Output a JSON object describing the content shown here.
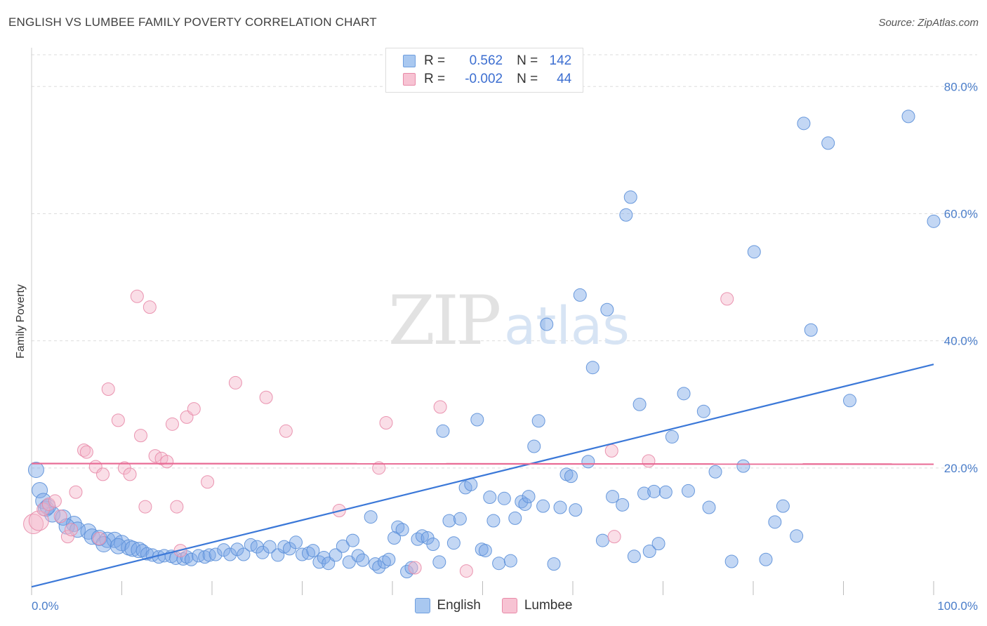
{
  "title": "ENGLISH VS LUMBEE FAMILY POVERTY CORRELATION CHART",
  "source": "Source: ZipAtlas.com",
  "watermark": {
    "zip": "ZIP",
    "atlas": "atlas"
  },
  "legend": {
    "rows": [
      {
        "r_label": "R =",
        "r_value": "0.562",
        "n_label": "N =",
        "n_value": "142",
        "color": "#a9c8f0",
        "border": "#6f9fdf"
      },
      {
        "r_label": "R =",
        "r_value": "-0.002",
        "n_label": "N =",
        "n_value": "44",
        "color": "#f7c3d3",
        "border": "#e88aa8"
      }
    ]
  },
  "bottom_legend": [
    {
      "label": "English",
      "color": "#a9c8f0",
      "border": "#6f9fdf"
    },
    {
      "label": "Lumbee",
      "color": "#f7c3d3",
      "border": "#e88aa8"
    }
  ],
  "chart_data": {
    "type": "scatter",
    "title": "ENGLISH VS LUMBEE FAMILY POVERTY CORRELATION CHART",
    "xlabel": "",
    "ylabel": "Family Poverty",
    "xlim": [
      0,
      100
    ],
    "ylim": [
      0,
      85
    ],
    "x_tick_labels": [
      "0.0%",
      "100.0%"
    ],
    "y_ticks": [
      20,
      40,
      60,
      80
    ],
    "y_tick_labels": [
      "20.0%",
      "40.0%",
      "60.0%",
      "80.0%"
    ],
    "grid": true,
    "series": [
      {
        "name": "English",
        "color": "#7aa6e6",
        "stroke": "#5b8fd8",
        "trend": {
          "x": [
            0,
            100
          ],
          "y": [
            1.3,
            36.3
          ],
          "color": "#3b78d8"
        },
        "points": [
          [
            0.5,
            19.7
          ],
          [
            0.9,
            16.5
          ],
          [
            1.3,
            14.8
          ],
          [
            1.6,
            13.6
          ],
          [
            2.3,
            12.7
          ],
          [
            3.5,
            12.2
          ],
          [
            4.7,
            11.2
          ],
          [
            3.9,
            10.8
          ],
          [
            5.1,
            10.3
          ],
          [
            6.3,
            10.0
          ],
          [
            6.7,
            9.2
          ],
          [
            7.5,
            9.0
          ],
          [
            8.4,
            8.7
          ],
          [
            9.2,
            8.7
          ],
          [
            8.0,
            8.0
          ],
          [
            10.0,
            8.2
          ],
          [
            9.6,
            7.7
          ],
          [
            10.8,
            7.5
          ],
          [
            11.2,
            7.3
          ],
          [
            11.9,
            7.1
          ],
          [
            12.3,
            7.0
          ],
          [
            12.8,
            6.5
          ],
          [
            13.4,
            6.3
          ],
          [
            14.1,
            6.0
          ],
          [
            14.7,
            6.2
          ],
          [
            15.5,
            6.1
          ],
          [
            16.0,
            5.8
          ],
          [
            16.8,
            5.7
          ],
          [
            17.2,
            6.0
          ],
          [
            17.7,
            5.6
          ],
          [
            18.5,
            6.2
          ],
          [
            19.2,
            6.0
          ],
          [
            19.7,
            6.3
          ],
          [
            20.4,
            6.4
          ],
          [
            21.3,
            7.1
          ],
          [
            22.0,
            6.4
          ],
          [
            22.8,
            7.2
          ],
          [
            23.5,
            6.4
          ],
          [
            24.3,
            7.9
          ],
          [
            25.0,
            7.6
          ],
          [
            25.6,
            6.7
          ],
          [
            26.4,
            7.6
          ],
          [
            27.3,
            6.3
          ],
          [
            28.0,
            7.6
          ],
          [
            28.6,
            7.3
          ],
          [
            29.3,
            8.3
          ],
          [
            30.0,
            6.4
          ],
          [
            30.7,
            6.6
          ],
          [
            31.2,
            7.0
          ],
          [
            31.9,
            5.2
          ],
          [
            32.4,
            5.9
          ],
          [
            32.9,
            5.0
          ],
          [
            33.7,
            6.3
          ],
          [
            34.5,
            7.7
          ],
          [
            35.2,
            5.2
          ],
          [
            35.6,
            8.6
          ],
          [
            36.2,
            6.2
          ],
          [
            36.7,
            5.5
          ],
          [
            37.6,
            12.3
          ],
          [
            38.1,
            4.9
          ],
          [
            38.5,
            4.4
          ],
          [
            39.1,
            5.2
          ],
          [
            39.6,
            5.6
          ],
          [
            40.2,
            9.0
          ],
          [
            40.6,
            10.7
          ],
          [
            41.1,
            10.3
          ],
          [
            41.6,
            3.7
          ],
          [
            42.1,
            4.3
          ],
          [
            42.8,
            8.8
          ],
          [
            43.3,
            9.3
          ],
          [
            43.9,
            9.0
          ],
          [
            44.5,
            8.0
          ],
          [
            45.2,
            5.2
          ],
          [
            45.6,
            25.8
          ],
          [
            46.3,
            11.7
          ],
          [
            46.8,
            8.2
          ],
          [
            47.5,
            12.0
          ],
          [
            48.1,
            16.9
          ],
          [
            48.7,
            17.4
          ],
          [
            49.4,
            27.6
          ],
          [
            49.9,
            7.2
          ],
          [
            50.3,
            7.0
          ],
          [
            50.8,
            15.4
          ],
          [
            51.2,
            11.7
          ],
          [
            51.8,
            5.0
          ],
          [
            52.4,
            15.2
          ],
          [
            53.1,
            5.4
          ],
          [
            53.6,
            12.1
          ],
          [
            54.3,
            14.7
          ],
          [
            54.7,
            14.3
          ],
          [
            55.1,
            15.5
          ],
          [
            55.7,
            23.4
          ],
          [
            56.2,
            27.4
          ],
          [
            56.7,
            14.0
          ],
          [
            57.1,
            42.6
          ],
          [
            57.9,
            4.9
          ],
          [
            58.6,
            13.8
          ],
          [
            59.3,
            19.0
          ],
          [
            59.8,
            18.7
          ],
          [
            60.3,
            13.4
          ],
          [
            60.8,
            47.2
          ],
          [
            61.7,
            21.0
          ],
          [
            62.2,
            35.8
          ],
          [
            63.3,
            8.6
          ],
          [
            63.8,
            44.9
          ],
          [
            64.4,
            15.5
          ],
          [
            65.5,
            14.2
          ],
          [
            65.9,
            59.8
          ],
          [
            66.4,
            62.6
          ],
          [
            66.8,
            6.1
          ],
          [
            67.4,
            30.0
          ],
          [
            67.9,
            16.0
          ],
          [
            68.5,
            6.9
          ],
          [
            69.0,
            16.3
          ],
          [
            69.5,
            8.1
          ],
          [
            70.3,
            16.2
          ],
          [
            71.0,
            24.9
          ],
          [
            72.3,
            31.7
          ],
          [
            72.8,
            16.4
          ],
          [
            74.5,
            28.9
          ],
          [
            75.1,
            13.8
          ],
          [
            75.8,
            19.4
          ],
          [
            77.6,
            5.3
          ],
          [
            78.9,
            20.3
          ],
          [
            80.1,
            54.0
          ],
          [
            81.4,
            5.6
          ],
          [
            82.4,
            11.5
          ],
          [
            83.3,
            14.0
          ],
          [
            84.8,
            9.3
          ],
          [
            85.6,
            74.2
          ],
          [
            86.4,
            41.7
          ],
          [
            88.3,
            71.1
          ],
          [
            90.7,
            30.6
          ],
          [
            97.2,
            75.3
          ],
          [
            100.0,
            58.8
          ],
          [
            1.8,
            13.9
          ]
        ]
      },
      {
        "name": "Lumbee",
        "color": "#f5b5c9",
        "stroke": "#e88aa8",
        "trend": {
          "x": [
            0,
            100
          ],
          "y": [
            20.7,
            20.6
          ],
          "color": "#e86a94"
        },
        "points": [
          [
            0.2,
            11.2
          ],
          [
            0.8,
            11.7
          ],
          [
            1.3,
            13.5
          ],
          [
            1.9,
            14.3
          ],
          [
            2.6,
            14.8
          ],
          [
            3.2,
            12.4
          ],
          [
            4.0,
            9.2
          ],
          [
            4.4,
            10.3
          ],
          [
            4.9,
            16.2
          ],
          [
            5.8,
            22.8
          ],
          [
            6.1,
            22.5
          ],
          [
            7.1,
            20.2
          ],
          [
            7.5,
            8.9
          ],
          [
            7.9,
            19.0
          ],
          [
            8.5,
            32.4
          ],
          [
            9.6,
            27.5
          ],
          [
            10.3,
            20.0
          ],
          [
            10.9,
            19.0
          ],
          [
            11.7,
            47.0
          ],
          [
            12.1,
            25.1
          ],
          [
            12.6,
            13.9
          ],
          [
            13.1,
            45.3
          ],
          [
            13.7,
            21.9
          ],
          [
            14.4,
            21.5
          ],
          [
            15.0,
            21.0
          ],
          [
            15.6,
            26.9
          ],
          [
            16.1,
            13.9
          ],
          [
            16.5,
            7.0
          ],
          [
            17.2,
            28.0
          ],
          [
            18.0,
            29.3
          ],
          [
            19.5,
            17.8
          ],
          [
            22.6,
            33.4
          ],
          [
            26.0,
            31.1
          ],
          [
            28.2,
            25.8
          ],
          [
            34.1,
            13.3
          ],
          [
            38.5,
            20.0
          ],
          [
            39.3,
            27.1
          ],
          [
            42.5,
            4.3
          ],
          [
            45.3,
            29.6
          ],
          [
            48.2,
            3.8
          ],
          [
            64.3,
            22.7
          ],
          [
            64.6,
            9.2
          ],
          [
            68.4,
            21.1
          ],
          [
            77.1,
            46.6
          ]
        ]
      }
    ]
  }
}
